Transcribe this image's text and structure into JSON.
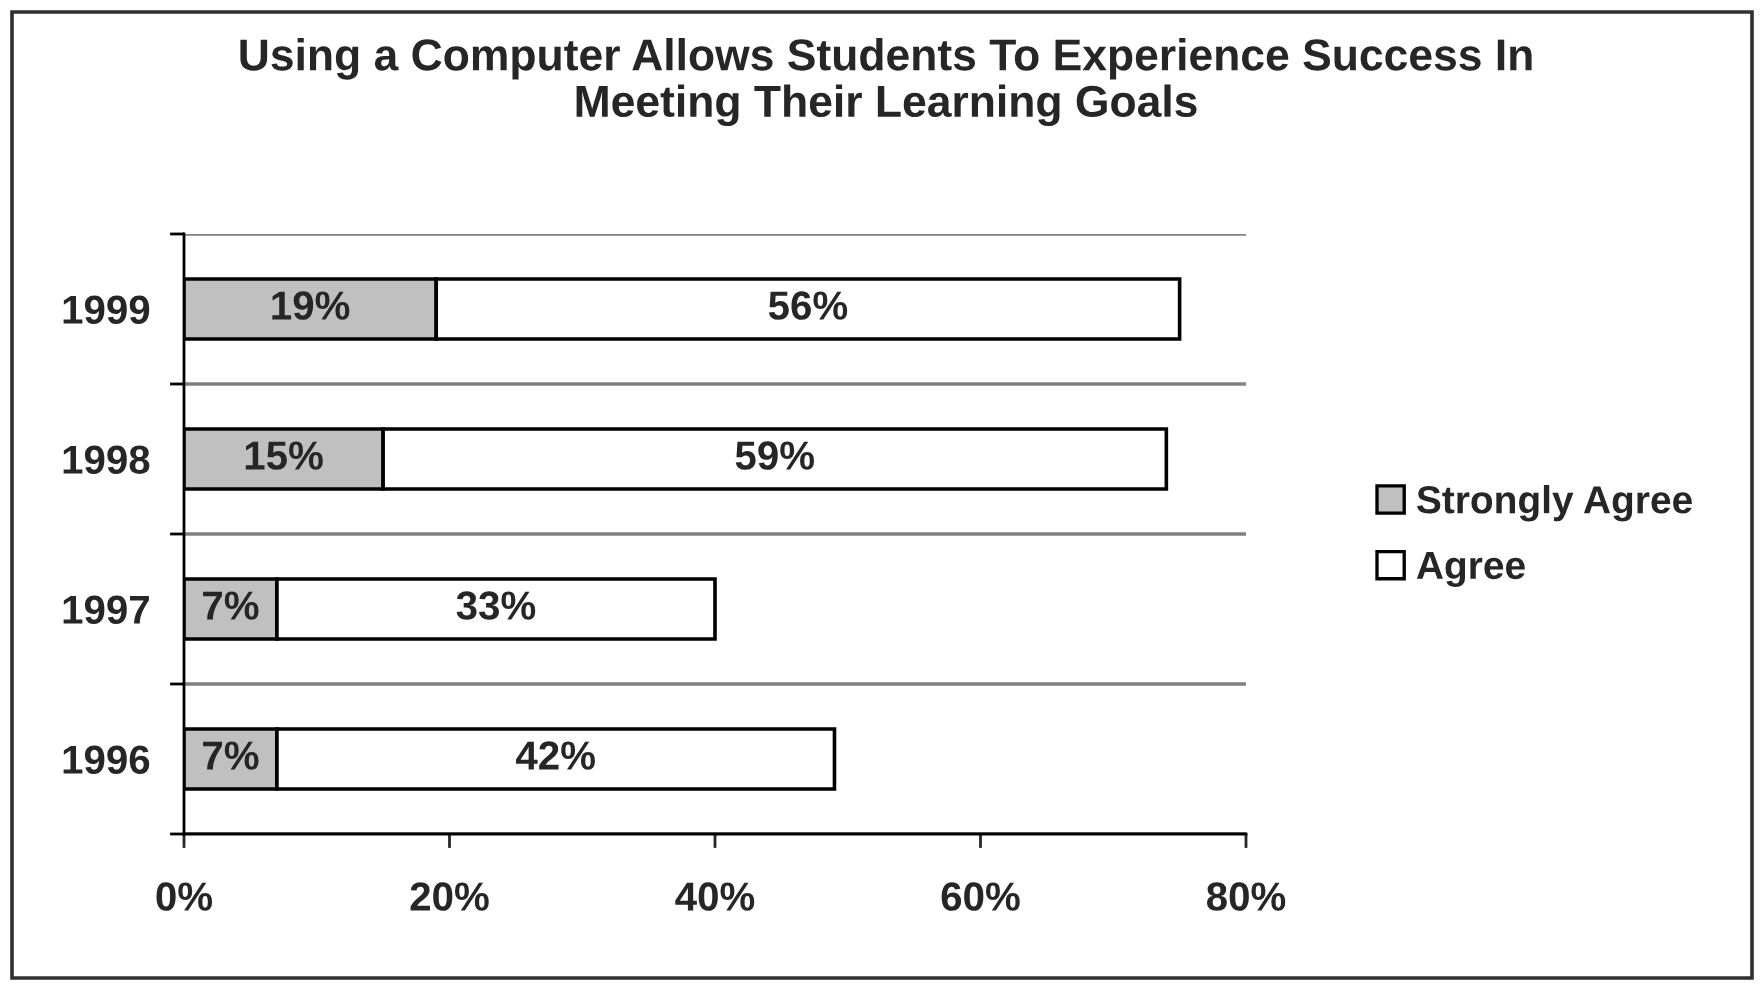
{
  "chart_data": {
    "type": "bar",
    "orientation": "horizontal",
    "stacked": true,
    "title": "Using a Computer Allows Students To Experience Success In Meeting Their Learning Goals",
    "categories": [
      "1999",
      "1998",
      "1997",
      "1996"
    ],
    "series": [
      {
        "name": "Strongly Agree",
        "color": "#c0c0c0",
        "values": [
          19,
          15,
          7,
          7
        ],
        "value_labels": [
          "19%",
          "15%",
          "7%",
          "7%"
        ]
      },
      {
        "name": "Agree",
        "color": "#ffffff",
        "values": [
          56,
          59,
          33,
          42
        ],
        "value_labels": [
          "56%",
          "59%",
          "33%",
          "42%"
        ]
      }
    ],
    "xlim": [
      0,
      80
    ],
    "xticks": [
      {
        "value": 0,
        "label": "0%"
      },
      {
        "value": 20,
        "label": "20%"
      },
      {
        "value": 40,
        "label": "40%"
      },
      {
        "value": 60,
        "label": "60%"
      },
      {
        "value": 80,
        "label": "80%"
      }
    ],
    "grid": "y",
    "legend": "right"
  }
}
